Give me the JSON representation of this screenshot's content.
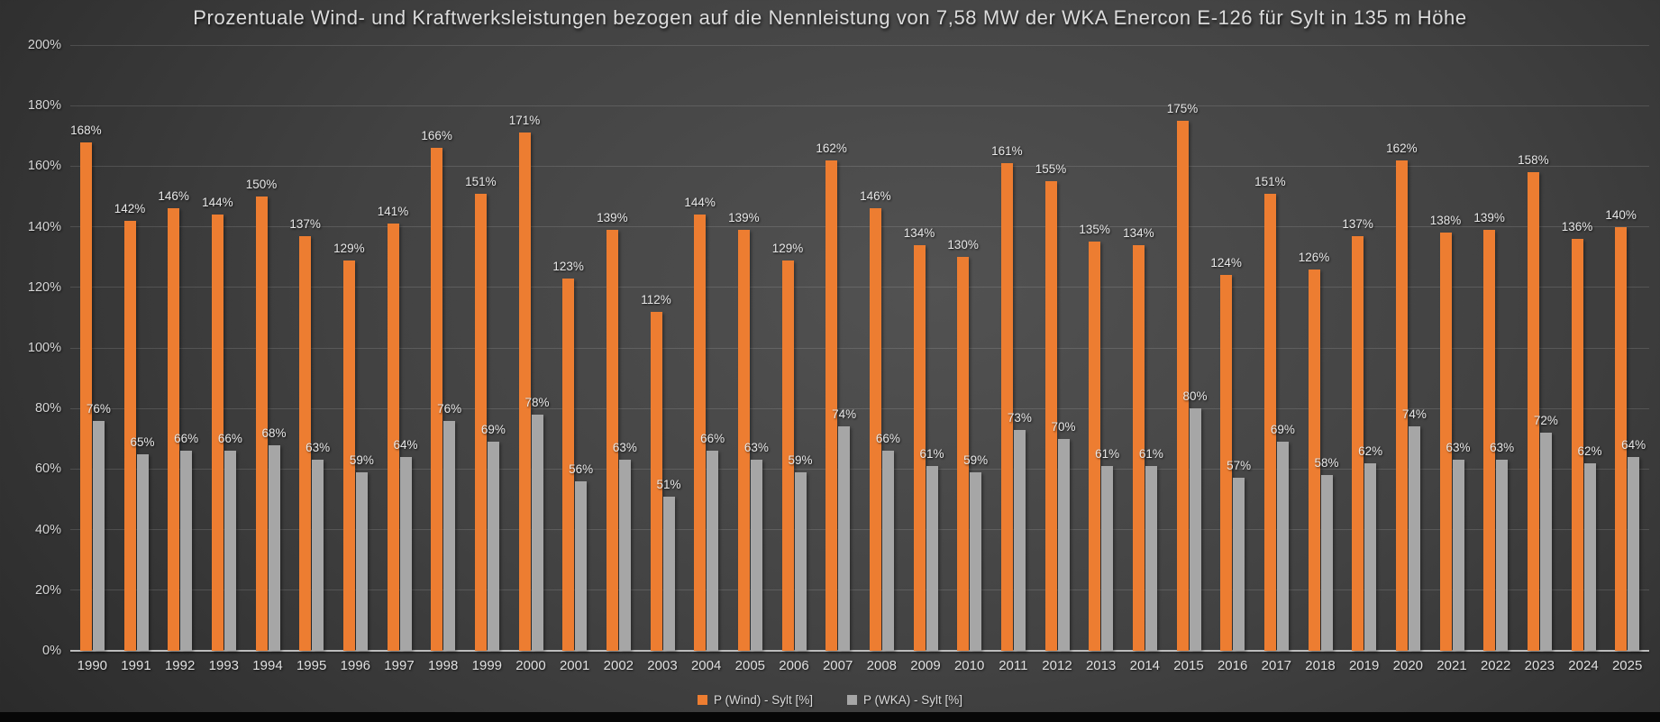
{
  "chart_data": {
    "type": "bar",
    "title": "Prozentuale Wind- und Kraftwerksleistungen bezogen auf die Nennleistung von 7,58 MW der WKA Enercon E-126 für Sylt in 135 m Höhe",
    "categories": [
      "1990",
      "1991",
      "1992",
      "1993",
      "1994",
      "1995",
      "1996",
      "1997",
      "1998",
      "1999",
      "2000",
      "2001",
      "2002",
      "2003",
      "2004",
      "2005",
      "2006",
      "2007",
      "2008",
      "2009",
      "2010",
      "2011",
      "2012",
      "2013",
      "2014",
      "2015",
      "2016",
      "2017",
      "2018",
      "2019",
      "2020",
      "2021",
      "2022",
      "2023",
      "2024",
      "2025"
    ],
    "series": [
      {
        "name": "P (Wind) - Sylt [%]",
        "key": "wind",
        "color": "#ED7D31",
        "values": [
          168,
          142,
          146,
          144,
          150,
          137,
          129,
          141,
          166,
          151,
          171,
          123,
          139,
          112,
          144,
          139,
          129,
          162,
          146,
          134,
          130,
          161,
          155,
          135,
          134,
          175,
          124,
          151,
          126,
          137,
          162,
          138,
          139,
          158,
          136,
          140
        ]
      },
      {
        "name": "P (WKA) - Sylt [%]",
        "key": "wka",
        "color": "#A6A6A6",
        "values": [
          76,
          65,
          66,
          66,
          68,
          63,
          59,
          64,
          76,
          69,
          78,
          56,
          63,
          51,
          66,
          63,
          59,
          74,
          66,
          61,
          59,
          73,
          70,
          61,
          61,
          80,
          57,
          69,
          58,
          62,
          74,
          63,
          63,
          72,
          62,
          64
        ]
      }
    ],
    "ylabel": "",
    "xlabel": "",
    "ylim": [
      0,
      200
    ],
    "y_step": 20,
    "tick_suffix": "%",
    "grid": true,
    "data_labels": true,
    "legend_position": "bottom"
  },
  "colors": {
    "wind_bar": "#ED7D31",
    "wka_bar": "#A6A6A6",
    "title_text": "#DCDCDC",
    "axis_text": "#D6D6D6",
    "background_center": "#525252",
    "background_edge": "#1E1E1E",
    "baseline": "#BDBDBD"
  }
}
